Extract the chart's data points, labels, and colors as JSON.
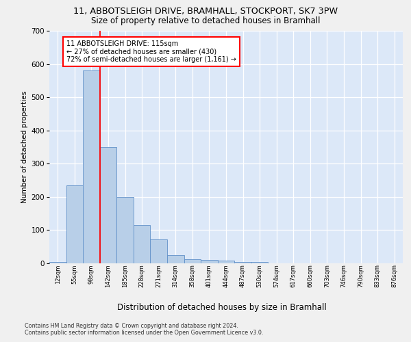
{
  "title_line1": "11, ABBOTSLEIGH DRIVE, BRAMHALL, STOCKPORT, SK7 3PW",
  "title_line2": "Size of property relative to detached houses in Bramhall",
  "xlabel": "Distribution of detached houses by size in Bramhall",
  "ylabel": "Number of detached properties",
  "footnote1": "Contains HM Land Registry data © Crown copyright and database right 2024.",
  "footnote2": "Contains public sector information licensed under the Open Government Licence v3.0.",
  "annotation_line1": "11 ABBOTSLEIGH DRIVE: 115sqm",
  "annotation_line2": "← 27% of detached houses are smaller (430)",
  "annotation_line3": "72% of semi-detached houses are larger (1,161) →",
  "bar_labels": [
    "12sqm",
    "55sqm",
    "98sqm",
    "142sqm",
    "185sqm",
    "228sqm",
    "271sqm",
    "314sqm",
    "358sqm",
    "401sqm",
    "444sqm",
    "487sqm",
    "530sqm",
    "574sqm",
    "617sqm",
    "660sqm",
    "703sqm",
    "746sqm",
    "790sqm",
    "833sqm",
    "876sqm"
  ],
  "bar_values": [
    5,
    235,
    580,
    350,
    200,
    115,
    73,
    25,
    13,
    10,
    9,
    5,
    5,
    0,
    0,
    0,
    0,
    0,
    0,
    0,
    0
  ],
  "bar_color": "#b8cfe8",
  "bar_edge_color": "#6090c8",
  "red_line_x": 2.5,
  "ylim": [
    0,
    700
  ],
  "yticks": [
    0,
    100,
    200,
    300,
    400,
    500,
    600,
    700
  ],
  "plot_bg_color": "#dce8f8",
  "fig_bg_color": "#f0f0f0",
  "grid_color": "#ffffff"
}
